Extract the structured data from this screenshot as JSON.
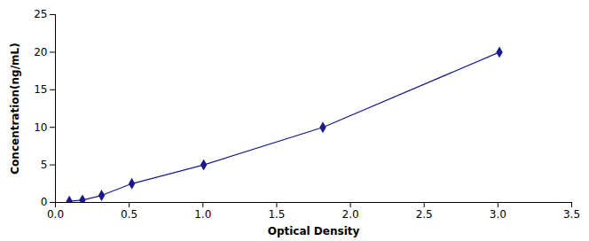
{
  "chart_data": {
    "type": "line",
    "x": [
      0.094,
      0.183,
      0.313,
      0.518,
      1.005,
      1.813,
      3.01
    ],
    "values": [
      0.156,
      0.313,
      0.938,
      2.5,
      5.0,
      10.0,
      20.0
    ],
    "color": "#1a1a8c",
    "marker": "diamond",
    "xlabel": "Optical Density",
    "ylabel": "Concentration(ng/mL)",
    "xlim": [
      0,
      3.5
    ],
    "ylim": [
      0,
      25
    ],
    "xticks": [
      {
        "value": 0,
        "label": "0.0"
      },
      0.5,
      {
        "value": 1.0,
        "label": "1.0"
      },
      1.5,
      {
        "value": 2.0,
        "label": "2.0"
      },
      2.5,
      {
        "value": 3.0,
        "label": "3.0"
      },
      3.5
    ],
    "yticks": [
      0,
      5,
      10,
      15,
      20,
      25
    ],
    "grid": false
  }
}
